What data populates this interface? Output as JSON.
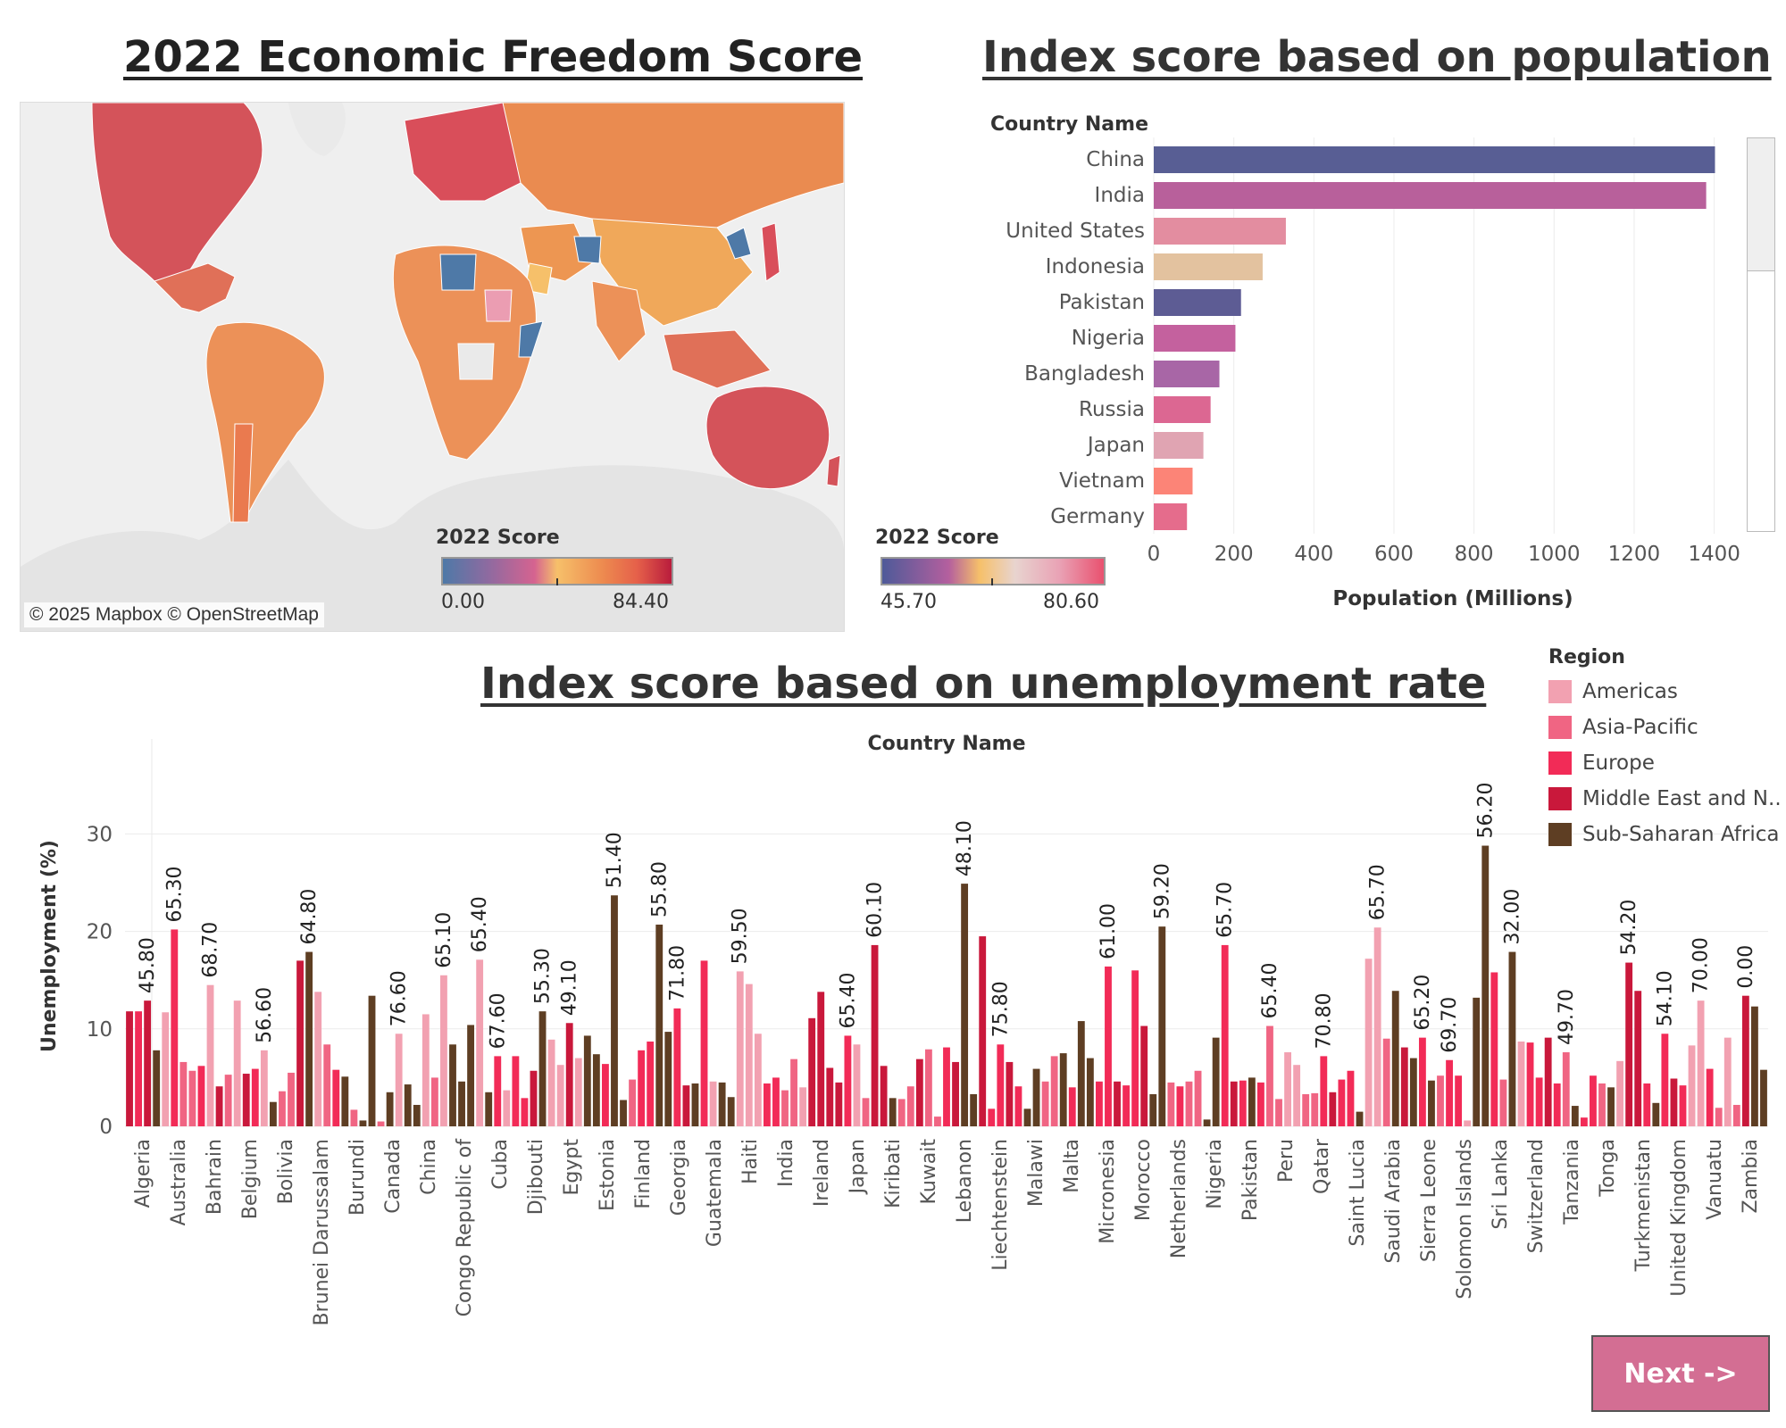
{
  "map": {
    "title": "2022 Economic Freedom Score",
    "attribution": "© 2025 Mapbox © OpenStreetMap",
    "legend": {
      "title": "2022 Score",
      "min": "0.00",
      "max": "84.40"
    }
  },
  "population": {
    "title": "Index score based on population",
    "legend": {
      "title": "2022 Score",
      "min": "45.70",
      "max": "80.60"
    }
  },
  "unemployment": {
    "title": "Index score based on unemployment rate"
  },
  "region_legend": {
    "title": "Region",
    "items": [
      {
        "name": "Americas",
        "color": "#f2a1b1"
      },
      {
        "name": "Asia-Pacific",
        "color": "#f06583"
      },
      {
        "name": "Europe",
        "color": "#f22b57"
      },
      {
        "name": "Middle East and N..",
        "color": "#c9183b"
      },
      {
        "name": "Sub-Saharan Africa",
        "color": "#5e3e23"
      }
    ]
  },
  "next_button": {
    "label": "Next ->"
  },
  "chart_data": [
    {
      "type": "bar",
      "orientation": "horizontal",
      "title": "Index score based on population",
      "row_header": "Country Name",
      "xlabel": "Population (Millions)",
      "xlim": [
        0,
        1450
      ],
      "xticks": [
        0,
        200,
        400,
        600,
        800,
        1000,
        1200,
        1400
      ],
      "grid": true,
      "categories": [
        "China",
        "India",
        "United States",
        "Indonesia",
        "Pakistan",
        "Nigeria",
        "Bangladesh",
        "Russia",
        "Japan",
        "Vietnam",
        "Germany"
      ],
      "values": [
        1402,
        1380,
        330,
        272,
        218,
        204,
        164,
        142,
        124,
        97,
        83
      ],
      "colors": [
        "#585e94",
        "#b8609b",
        "#e38da0",
        "#e3c29f",
        "#5d5c94",
        "#c4619e",
        "#a866a6",
        "#dc6792",
        "#e0a4b2",
        "#fc8477",
        "#e56c8c"
      ]
    },
    {
      "type": "bar",
      "title": "Index score based on unemployment rate",
      "header": "Country Name",
      "ylabel": "Unemployment (%)",
      "ylim": [
        0,
        37
      ],
      "yticks": [
        0,
        10,
        20,
        30
      ],
      "grid": true,
      "legend": "right",
      "tick_labels": [
        "Algeria",
        "Australia",
        "Bahrain",
        "Belgium",
        "Bolivia",
        "Brunei Darussalam",
        "Burundi",
        "Canada",
        "China",
        "Congo Republic of",
        "Cuba",
        "Djibouti",
        "Egypt",
        "Estonia",
        "Finland",
        "Georgia",
        "Guatemala",
        "Haiti",
        "India",
        "Ireland",
        "Japan",
        "Kiribati",
        "Kuwait",
        "Lebanon",
        "Liechtenstein",
        "Malawi",
        "Malta",
        "Micronesia",
        "Morocco",
        "Netherlands",
        "Nigeria",
        "Pakistan",
        "Peru",
        "Qatar",
        "Saint Lucia",
        "Saudi Arabia",
        "Sierra Leone",
        "Solomon Islands",
        "Sri Lanka",
        "Switzerland",
        "Tanzania",
        "Tonga",
        "Turkmenistan",
        "United Kingdom",
        "Vanuatu",
        "Zambia"
      ],
      "bars": [
        {
          "v": 11.8,
          "r": 3
        },
        {
          "v": 11.8,
          "r": 2
        },
        {
          "v": 12.9,
          "r": 3,
          "label": "45.80"
        },
        {
          "v": 7.8,
          "r": 4
        },
        {
          "v": 11.7,
          "r": 0
        },
        {
          "v": 20.2,
          "r": 2,
          "label": "65.30"
        },
        {
          "v": 6.6,
          "r": 1
        },
        {
          "v": 5.7,
          "r": 1
        },
        {
          "v": 6.2,
          "r": 2
        },
        {
          "v": 14.5,
          "r": 0,
          "label": "68.70"
        },
        {
          "v": 4.1,
          "r": 3
        },
        {
          "v": 5.3,
          "r": 1
        },
        {
          "v": 12.9,
          "r": 0
        },
        {
          "v": 5.4,
          "r": 3
        },
        {
          "v": 5.9,
          "r": 2
        },
        {
          "v": 7.8,
          "r": 0,
          "label": "56.60"
        },
        {
          "v": 2.5,
          "r": 4
        },
        {
          "v": 3.6,
          "r": 1
        },
        {
          "v": 5.5,
          "r": 1
        },
        {
          "v": 17.0,
          "r": 3
        },
        {
          "v": 17.9,
          "r": 4,
          "label": "64.80"
        },
        {
          "v": 13.8,
          "r": 0
        },
        {
          "v": 8.4,
          "r": 1
        },
        {
          "v": 5.8,
          "r": 2
        },
        {
          "v": 5.1,
          "r": 4
        },
        {
          "v": 1.7,
          "r": 1
        },
        {
          "v": 0.6,
          "r": 4
        },
        {
          "v": 13.4,
          "r": 4
        },
        {
          "v": 0.5,
          "r": 1
        },
        {
          "v": 3.5,
          "r": 4
        },
        {
          "v": 9.5,
          "r": 0,
          "label": "76.60"
        },
        {
          "v": 4.3,
          "r": 4
        },
        {
          "v": 2.2,
          "r": 4
        },
        {
          "v": 11.5,
          "r": 0
        },
        {
          "v": 5.0,
          "r": 1
        },
        {
          "v": 15.5,
          "r": 0,
          "label": "65.10"
        },
        {
          "v": 8.4,
          "r": 4
        },
        {
          "v": 4.6,
          "r": 4
        },
        {
          "v": 10.4,
          "r": 4
        },
        {
          "v": 17.1,
          "r": 0,
          "label": "65.40"
        },
        {
          "v": 3.5,
          "r": 4
        },
        {
          "v": 7.2,
          "r": 2,
          "label": "67.60"
        },
        {
          "v": 3.7,
          "r": 0
        },
        {
          "v": 7.2,
          "r": 2
        },
        {
          "v": 2.9,
          "r": 2
        },
        {
          "v": 5.7,
          "r": 3
        },
        {
          "v": 11.8,
          "r": 4,
          "label": "55.30"
        },
        {
          "v": 8.9,
          "r": 0
        },
        {
          "v": 6.3,
          "r": 0
        },
        {
          "v": 10.6,
          "r": 3,
          "label": "49.10"
        },
        {
          "v": 7.0,
          "r": 0
        },
        {
          "v": 9.3,
          "r": 4
        },
        {
          "v": 7.4,
          "r": 4
        },
        {
          "v": 6.4,
          "r": 2
        },
        {
          "v": 23.7,
          "r": 4,
          "label": "51.40"
        },
        {
          "v": 2.7,
          "r": 4
        },
        {
          "v": 4.8,
          "r": 1
        },
        {
          "v": 7.8,
          "r": 2
        },
        {
          "v": 8.7,
          "r": 2
        },
        {
          "v": 20.7,
          "r": 4,
          "label": "55.80"
        },
        {
          "v": 9.7,
          "r": 4
        },
        {
          "v": 12.1,
          "r": 2,
          "label": "71.80"
        },
        {
          "v": 4.2,
          "r": 3
        },
        {
          "v": 4.4,
          "r": 4
        },
        {
          "v": 17.0,
          "r": 2
        },
        {
          "v": 4.6,
          "r": 0
        },
        {
          "v": 4.5,
          "r": 4
        },
        {
          "v": 3.0,
          "r": 4
        },
        {
          "v": 15.9,
          "r": 0,
          "label": "59.50"
        },
        {
          "v": 14.6,
          "r": 0
        },
        {
          "v": 9.5,
          "r": 0
        },
        {
          "v": 4.4,
          "r": 2
        },
        {
          "v": 5.0,
          "r": 2
        },
        {
          "v": 3.7,
          "r": 1
        },
        {
          "v": 6.9,
          "r": 1
        },
        {
          "v": 4.0,
          "r": 0
        },
        {
          "v": 11.1,
          "r": 3
        },
        {
          "v": 13.8,
          "r": 3
        },
        {
          "v": 6.0,
          "r": 3
        },
        {
          "v": 4.5,
          "r": 3
        },
        {
          "v": 9.3,
          "r": 2,
          "label": "65.40"
        },
        {
          "v": 8.4,
          "r": 0
        },
        {
          "v": 2.9,
          "r": 1
        },
        {
          "v": 18.6,
          "r": 3,
          "label": "60.10"
        },
        {
          "v": 6.2,
          "r": 3
        },
        {
          "v": 2.9,
          "r": 4
        },
        {
          "v": 2.8,
          "r": 1
        },
        {
          "v": 4.1,
          "r": 1
        },
        {
          "v": 6.9,
          "r": 3
        },
        {
          "v": 7.9,
          "r": 1
        },
        {
          "v": 1.0,
          "r": 1
        },
        {
          "v": 8.1,
          "r": 2
        },
        {
          "v": 6.6,
          "r": 3
        },
        {
          "v": 24.9,
          "r": 4,
          "label": "48.10"
        },
        {
          "v": 3.3,
          "r": 4
        },
        {
          "v": 19.5,
          "r": 3
        },
        {
          "v": 1.8,
          "r": 2
        },
        {
          "v": 8.4,
          "r": 2,
          "label": "75.80"
        },
        {
          "v": 6.6,
          "r": 3
        },
        {
          "v": 4.1,
          "r": 2
        },
        {
          "v": 1.8,
          "r": 4
        },
        {
          "v": 5.9,
          "r": 4
        },
        {
          "v": 4.6,
          "r": 1
        },
        {
          "v": 7.2,
          "r": 1
        },
        {
          "v": 7.5,
          "r": 4
        },
        {
          "v": 4.0,
          "r": 2
        },
        {
          "v": 10.8,
          "r": 4
        },
        {
          "v": 7.0,
          "r": 4
        },
        {
          "v": 4.6,
          "r": 2
        },
        {
          "v": 16.4,
          "r": 2,
          "label": "61.00"
        },
        {
          "v": 4.6,
          "r": 3
        },
        {
          "v": 4.2,
          "r": 2
        },
        {
          "v": 16.0,
          "r": 2
        },
        {
          "v": 10.3,
          "r": 3
        },
        {
          "v": 3.3,
          "r": 4
        },
        {
          "v": 20.5,
          "r": 4,
          "label": "59.20"
        },
        {
          "v": 4.5,
          "r": 1
        },
        {
          "v": 4.1,
          "r": 2
        },
        {
          "v": 4.6,
          "r": 1
        },
        {
          "v": 5.7,
          "r": 1
        },
        {
          "v": 0.7,
          "r": 4
        },
        {
          "v": 9.1,
          "r": 4
        },
        {
          "v": 18.6,
          "r": 2,
          "label": "65.70"
        },
        {
          "v": 4.6,
          "r": 3
        },
        {
          "v": 4.7,
          "r": 2
        },
        {
          "v": 5.0,
          "r": 4
        },
        {
          "v": 4.5,
          "r": 2
        },
        {
          "v": 10.3,
          "r": 1,
          "label": "65.40"
        },
        {
          "v": 2.8,
          "r": 1
        },
        {
          "v": 7.6,
          "r": 0
        },
        {
          "v": 6.3,
          "r": 0
        },
        {
          "v": 3.3,
          "r": 1
        },
        {
          "v": 3.4,
          "r": 1
        },
        {
          "v": 7.2,
          "r": 2,
          "label": "70.80"
        },
        {
          "v": 3.5,
          "r": 3
        },
        {
          "v": 4.8,
          "r": 2
        },
        {
          "v": 5.7,
          "r": 2
        },
        {
          "v": 1.5,
          "r": 4
        },
        {
          "v": 17.2,
          "r": 0
        },
        {
          "v": 20.4,
          "r": 0,
          "label": "65.70"
        },
        {
          "v": 9.0,
          "r": 1
        },
        {
          "v": 13.9,
          "r": 4
        },
        {
          "v": 8.1,
          "r": 3
        },
        {
          "v": 7.0,
          "r": 4
        },
        {
          "v": 9.1,
          "r": 2,
          "label": "65.20"
        },
        {
          "v": 4.7,
          "r": 4
        },
        {
          "v": 5.2,
          "r": 1
        },
        {
          "v": 6.8,
          "r": 2,
          "label": "69.70"
        },
        {
          "v": 5.2,
          "r": 2
        },
        {
          "v": 0.6,
          "r": 0
        },
        {
          "v": 13.2,
          "r": 4
        },
        {
          "v": 28.8,
          "r": 4,
          "label": "56.20"
        },
        {
          "v": 15.8,
          "r": 2
        },
        {
          "v": 4.8,
          "r": 1
        },
        {
          "v": 17.9,
          "r": 4,
          "label": "32.00"
        },
        {
          "v": 8.7,
          "r": 0
        },
        {
          "v": 8.6,
          "r": 2
        },
        {
          "v": 5.0,
          "r": 2
        },
        {
          "v": 9.1,
          "r": 3
        },
        {
          "v": 4.4,
          "r": 2
        },
        {
          "v": 7.6,
          "r": 1,
          "label": "49.70"
        },
        {
          "v": 2.1,
          "r": 4
        },
        {
          "v": 0.9,
          "r": 2
        },
        {
          "v": 5.2,
          "r": 2
        },
        {
          "v": 4.4,
          "r": 1
        },
        {
          "v": 4.0,
          "r": 4
        },
        {
          "v": 6.7,
          "r": 0
        },
        {
          "v": 16.8,
          "r": 3,
          "label": "54.20"
        },
        {
          "v": 13.9,
          "r": 3
        },
        {
          "v": 4.4,
          "r": 2
        },
        {
          "v": 2.4,
          "r": 4
        },
        {
          "v": 9.5,
          "r": 2,
          "label": "54.10"
        },
        {
          "v": 4.9,
          "r": 3
        },
        {
          "v": 4.2,
          "r": 2
        },
        {
          "v": 8.3,
          "r": 0
        },
        {
          "v": 12.9,
          "r": 0,
          "label": "70.00"
        },
        {
          "v": 5.9,
          "r": 2
        },
        {
          "v": 1.9,
          "r": 1
        },
        {
          "v": 9.1,
          "r": 0
        },
        {
          "v": 2.2,
          "r": 1
        },
        {
          "v": 13.4,
          "r": 3,
          "label": "0.00"
        },
        {
          "v": 12.3,
          "r": 4
        },
        {
          "v": 5.8,
          "r": 4
        }
      ]
    }
  ]
}
